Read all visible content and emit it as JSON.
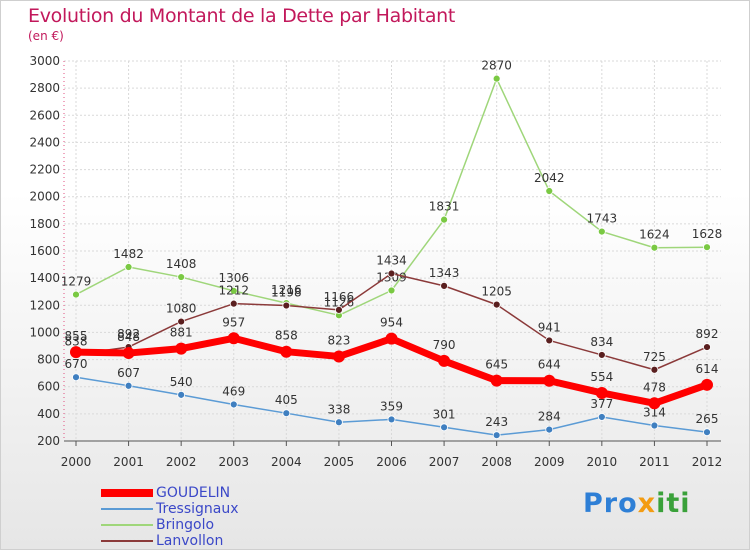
{
  "chart_data": {
    "type": "line",
    "title": "Evolution du Montant de la Dette par Habitant",
    "subtitle": "(en €)",
    "x": [
      "2000",
      "2001",
      "2002",
      "2003",
      "2004",
      "2005",
      "2006",
      "2007",
      "2008",
      "2009",
      "2010",
      "2011",
      "2012"
    ],
    "ylim": [
      200,
      3000
    ],
    "yticks": [
      200,
      400,
      600,
      800,
      1000,
      1200,
      1400,
      1600,
      1800,
      2000,
      2200,
      2400,
      2600,
      2800,
      3000
    ],
    "grid": true,
    "legend_position": "bottom-left",
    "series": [
      {
        "name": "Tressignaux",
        "color": "#5b9bd5",
        "marker": "#3f7fc0",
        "values": [
          670,
          607,
          540,
          469,
          405,
          338,
          359,
          301,
          243,
          284,
          377,
          314,
          265
        ]
      },
      {
        "name": "Bringolo",
        "color": "#9fd67a",
        "marker": "#7ac943",
        "values": [
          1279,
          1482,
          1408,
          1306,
          1216,
          1126,
          1309,
          1831,
          2870,
          2042,
          1743,
          1624,
          1628
        ]
      },
      {
        "name": "Lanvollon",
        "color": "#8b3a3a",
        "marker": "#5a1f1f",
        "values": [
          838,
          892,
          1080,
          1212,
          1198,
          1166,
          1434,
          1343,
          1205,
          941,
          834,
          725,
          892
        ]
      },
      {
        "name": "GOUDELIN",
        "color": "#ff0000",
        "marker": "#ff0000",
        "highlight": true,
        "values": [
          855,
          848,
          881,
          957,
          858,
          823,
          954,
          790,
          645,
          644,
          554,
          478,
          614
        ]
      }
    ]
  },
  "legend": {
    "items": [
      {
        "label": "GOUDELIN",
        "color": "#ff0000",
        "thickness": 8
      },
      {
        "label": "Tressignaux",
        "color": "#5b9bd5",
        "thickness": 2
      },
      {
        "label": "Bringolo",
        "color": "#9fd67a",
        "thickness": 2
      },
      {
        "label": "Lanvollon",
        "color": "#8b3a3a",
        "thickness": 2
      }
    ]
  },
  "logo": {
    "part1": "Pro",
    "part2": "x",
    "part3": "iti"
  }
}
